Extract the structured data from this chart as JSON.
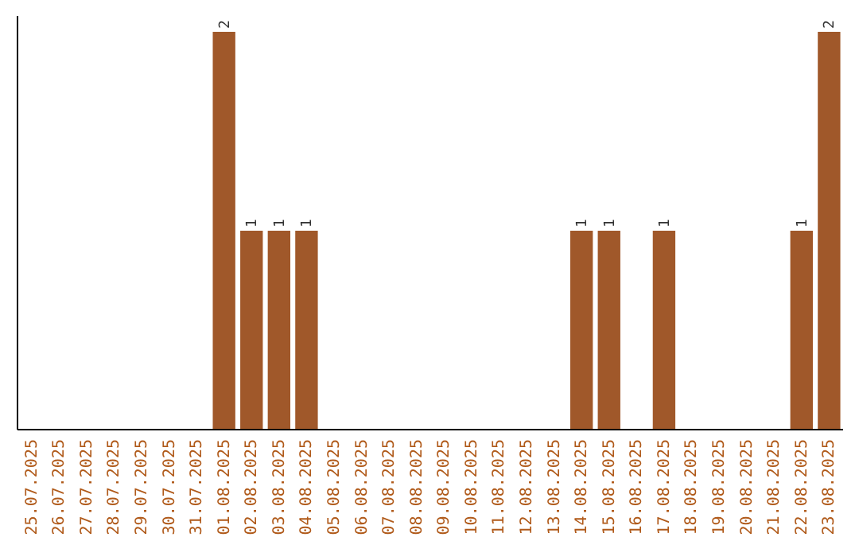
{
  "chart_data": {
    "type": "bar",
    "categories": [
      "25.07.2025",
      "26.07.2025",
      "27.07.2025",
      "28.07.2025",
      "29.07.2025",
      "30.07.2025",
      "31.07.2025",
      "01.08.2025",
      "02.08.2025",
      "03.08.2025",
      "04.08.2025",
      "05.08.2025",
      "06.08.2025",
      "07.08.2025",
      "08.08.2025",
      "09.08.2025",
      "10.08.2025",
      "11.08.2025",
      "12.08.2025",
      "13.08.2025",
      "14.08.2025",
      "15.08.2025",
      "16.08.2025",
      "17.08.2025",
      "18.08.2025",
      "19.08.2025",
      "20.08.2025",
      "21.08.2025",
      "22.08.2025",
      "23.08.2025"
    ],
    "values": [
      0,
      0,
      0,
      0,
      0,
      0,
      0,
      2,
      1,
      1,
      1,
      0,
      0,
      0,
      0,
      0,
      0,
      0,
      0,
      0,
      1,
      1,
      0,
      1,
      0,
      0,
      0,
      0,
      1,
      2
    ],
    "value_labels": [
      null,
      null,
      null,
      null,
      null,
      null,
      null,
      "2",
      "1",
      "1",
      "1",
      null,
      null,
      null,
      null,
      null,
      null,
      null,
      null,
      null,
      "1",
      "1",
      null,
      "1",
      null,
      null,
      null,
      null,
      "1",
      "2"
    ],
    "color": "#a0582a",
    "ylim": [
      0,
      2.08
    ],
    "tick_labels": "x"
  }
}
